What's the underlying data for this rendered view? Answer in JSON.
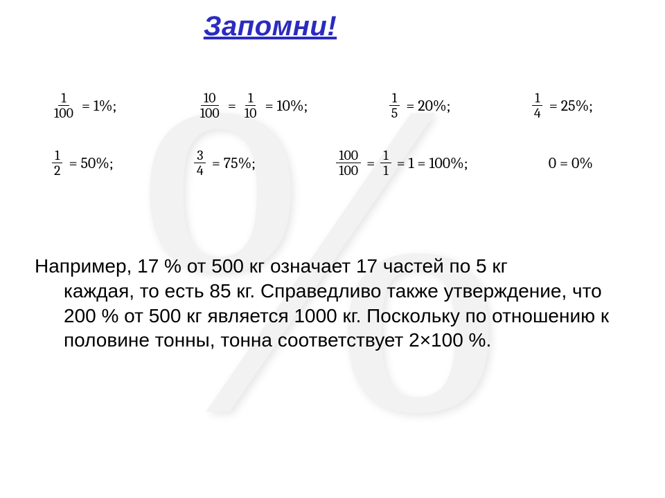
{
  "watermark": "%",
  "title": {
    "text": "Запомни!",
    "color": "#2b2bbf",
    "fontsize": 40
  },
  "equations": {
    "fontsize": 22,
    "color": "#000000",
    "rows": [
      [
        {
          "parts": [
            {
              "frac": {
                "n": "1",
                "d": "100"
              }
            },
            {
              "txt": "= 1%;"
            }
          ]
        },
        {
          "parts": [
            {
              "frac": {
                "n": "10",
                "d": "100"
              }
            },
            {
              "txt": "="
            },
            {
              "frac": {
                "n": "1",
                "d": "10"
              }
            },
            {
              "txt": "= 10%;"
            }
          ]
        },
        {
          "parts": [
            {
              "frac": {
                "n": "1",
                "d": "5"
              }
            },
            {
              "txt": "= 20%;"
            }
          ]
        },
        {
          "parts": [
            {
              "frac": {
                "n": "1",
                "d": "4"
              }
            },
            {
              "txt": "= 25%;"
            }
          ]
        }
      ],
      [
        {
          "parts": [
            {
              "frac": {
                "n": "1",
                "d": "2"
              }
            },
            {
              "txt": "= 50%;"
            }
          ]
        },
        {
          "parts": [
            {
              "frac": {
                "n": "3",
                "d": "4"
              }
            },
            {
              "txt": "= 75%;"
            }
          ]
        },
        {
          "parts": [
            {
              "frac": {
                "n": "100",
                "d": "100"
              }
            },
            {
              "txt": "="
            },
            {
              "frac": {
                "n": "1",
                "d": "1"
              }
            },
            {
              "txt": "= 1 = 100%;"
            }
          ]
        },
        {
          "parts": [
            {
              "txt": "0 = 0%"
            }
          ]
        }
      ]
    ]
  },
  "paragraph": {
    "fontsize": 28,
    "color": "#000000",
    "first": "Например, 17 % от 500 кг означает 17 частей по 5 кг",
    "rest": "каждая, то есть 85 кг. Справедливо также утверждение, что 200 % от 500 кг является 1000 кг. Поскольку по отношению к половине тонны, тонна соответствует 2×100 %."
  },
  "background_color": "#ffffff",
  "watermark_color": "#f2f2f2"
}
